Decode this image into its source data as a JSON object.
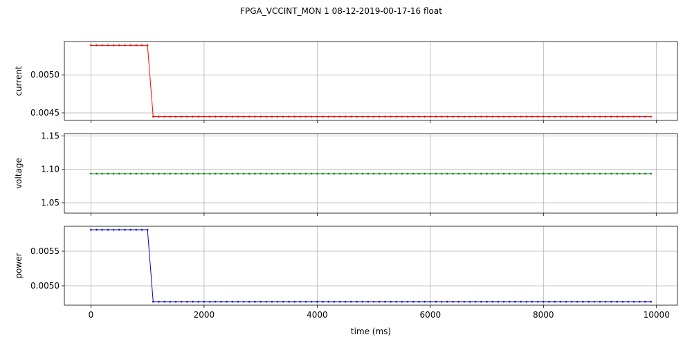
{
  "figure": {
    "title": "FPGA_VCCINT_MON   1   08-12-2019-00-17-16   float"
  },
  "chart_data": [
    {
      "type": "line",
      "name": "current-plot",
      "ylabel": "current",
      "xlabel": "",
      "color": "#ff0000",
      "grid": true,
      "xlim": [
        -470,
        10370
      ],
      "ylim": [
        0.0044,
        0.00544
      ],
      "x_ticks": [
        0,
        2000,
        4000,
        6000,
        8000,
        10000
      ],
      "x_tick_labels": [
        "",
        "",
        "",
        "",
        "",
        ""
      ],
      "y_ticks": [
        0.0045,
        0.005
      ],
      "y_tick_labels": [
        "0.0045",
        "0.0050"
      ],
      "series": [
        {
          "segments": [
            {
              "x_start": 0,
              "x_end": 1000,
              "step": 100,
              "y": 0.00539
            },
            {
              "x_start": 1100,
              "x_end": 9900,
              "step": 100,
              "y": 0.00445
            }
          ]
        }
      ]
    },
    {
      "type": "line",
      "name": "voltage-plot",
      "ylabel": "voltage",
      "xlabel": "",
      "color": "#008000",
      "grid": true,
      "xlim": [
        -470,
        10370
      ],
      "ylim": [
        1.0345,
        1.1535
      ],
      "x_ticks": [
        0,
        2000,
        4000,
        6000,
        8000,
        10000
      ],
      "x_tick_labels": [
        "",
        "",
        "",
        "",
        "",
        ""
      ],
      "y_ticks": [
        1.05,
        1.1,
        1.15
      ],
      "y_tick_labels": [
        "1.05",
        "1.10",
        "1.15"
      ],
      "series": [
        {
          "segments": [
            {
              "x_start": 0,
              "x_end": 9900,
              "step": 100,
              "y": 1.0935
            }
          ]
        }
      ]
    },
    {
      "type": "line",
      "name": "power-plot",
      "ylabel": "power",
      "xlabel": "time (ms)",
      "color": "#0000cc",
      "grid": true,
      "xlim": [
        -470,
        10370
      ],
      "ylim": [
        0.00472,
        0.00586
      ],
      "x_ticks": [
        0,
        2000,
        4000,
        6000,
        8000,
        10000
      ],
      "x_tick_labels": [
        "0",
        "2000",
        "4000",
        "6000",
        "8000",
        "10000"
      ],
      "y_ticks": [
        0.005,
        0.0055
      ],
      "y_tick_labels": [
        "0.0050",
        "0.0055"
      ],
      "series": [
        {
          "segments": [
            {
              "x_start": 0,
              "x_end": 1000,
              "step": 100,
              "y": 0.00581
            },
            {
              "x_start": 1100,
              "x_end": 9900,
              "step": 100,
              "y": 0.00477
            }
          ]
        }
      ]
    }
  ]
}
